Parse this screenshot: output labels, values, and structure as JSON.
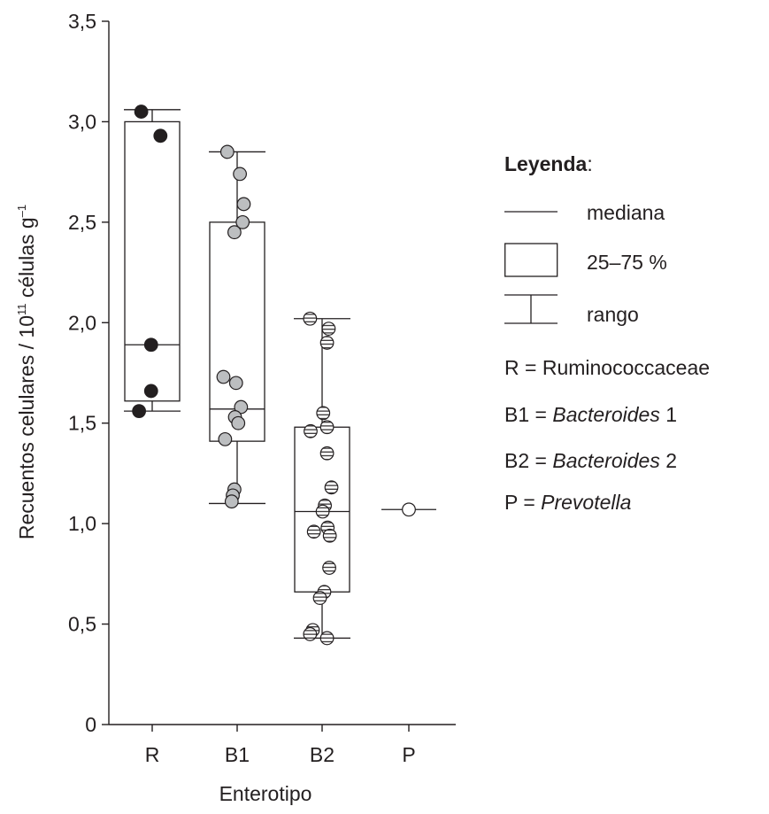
{
  "chart_data": {
    "type": "box-scatter",
    "xlabel": "Enterotipo",
    "ylabel": "Recuentos celulares / 10",
    "ylabel_sup1": "11",
    "ylabel_mid": " células g",
    "ylabel_sup2": "–1",
    "ylim": [
      0,
      3.5
    ],
    "yticks": [
      0,
      0.5,
      1.0,
      1.5,
      2.0,
      2.5,
      3.0,
      3.5
    ],
    "ytick_labels": [
      "0",
      "0,5",
      "1,0",
      "1,5",
      "2,0",
      "2,5",
      "3,0",
      "3,5"
    ],
    "categories": [
      "R",
      "B1",
      "B2",
      "P"
    ],
    "grid": false,
    "legend_placement": "right",
    "groups": [
      {
        "name": "R",
        "fill": "#231f20",
        "pattern": "solid",
        "median": 1.89,
        "q1": 1.61,
        "q3": 3.0,
        "min": 1.56,
        "max": 3.06,
        "points": [
          [
            -0.2,
            3.05
          ],
          [
            0.15,
            2.93
          ],
          [
            -0.02,
            1.89
          ],
          [
            -0.02,
            1.66
          ],
          [
            -0.24,
            1.56
          ]
        ]
      },
      {
        "name": "B1",
        "fill": "#bcbec0",
        "pattern": "solid",
        "median": 1.57,
        "q1": 1.41,
        "q3": 2.5,
        "min": 1.1,
        "max": 2.85,
        "points": [
          [
            -0.18,
            2.85
          ],
          [
            0.05,
            2.74
          ],
          [
            0.12,
            2.59
          ],
          [
            0.1,
            2.5
          ],
          [
            -0.05,
            2.45
          ],
          [
            -0.25,
            1.73
          ],
          [
            -0.02,
            1.7
          ],
          [
            0.07,
            1.58
          ],
          [
            -0.04,
            1.53
          ],
          [
            0.02,
            1.5
          ],
          [
            -0.22,
            1.42
          ],
          [
            -0.05,
            1.17
          ],
          [
            -0.08,
            1.14
          ],
          [
            -0.1,
            1.11
          ]
        ]
      },
      {
        "name": "B2",
        "fill": "#ffffff",
        "pattern": "hatched",
        "median": 1.06,
        "q1": 0.66,
        "q3": 1.48,
        "min": 0.43,
        "max": 2.02,
        "points": [
          [
            -0.22,
            2.02
          ],
          [
            0.12,
            1.97
          ],
          [
            0.09,
            1.9
          ],
          [
            0.02,
            1.55
          ],
          [
            -0.21,
            1.46
          ],
          [
            0.09,
            1.48
          ],
          [
            0.09,
            1.35
          ],
          [
            0.17,
            1.18
          ],
          [
            0.05,
            1.09
          ],
          [
            0.01,
            1.06
          ],
          [
            -0.15,
            0.96
          ],
          [
            0.1,
            0.98
          ],
          [
            0.14,
            0.94
          ],
          [
            0.13,
            0.78
          ],
          [
            0.04,
            0.66
          ],
          [
            -0.04,
            0.63
          ],
          [
            -0.17,
            0.47
          ],
          [
            -0.22,
            0.45
          ],
          [
            0.09,
            0.43
          ]
        ]
      },
      {
        "name": "P",
        "fill": "#ffffff",
        "pattern": "open",
        "median": 1.07,
        "points": [
          [
            0.0,
            1.07
          ]
        ]
      }
    ]
  },
  "legend": {
    "title": "Leyenda",
    "title_suffix": ":",
    "median_label": "mediana",
    "box_label": "25–75 %",
    "range_label": "rango",
    "defs": [
      {
        "prefix": "R = ",
        "name": "Ruminococcaceae",
        "italic": false,
        "suffix": ""
      },
      {
        "prefix": "B1 = ",
        "name": "Bacteroides",
        "italic": true,
        "suffix": " 1"
      },
      {
        "prefix": "B2 = ",
        "name": "Bacteroides",
        "italic": true,
        "suffix": " 2"
      },
      {
        "prefix": "P = ",
        "name": "Prevotella",
        "italic": true,
        "suffix": ""
      }
    ]
  }
}
